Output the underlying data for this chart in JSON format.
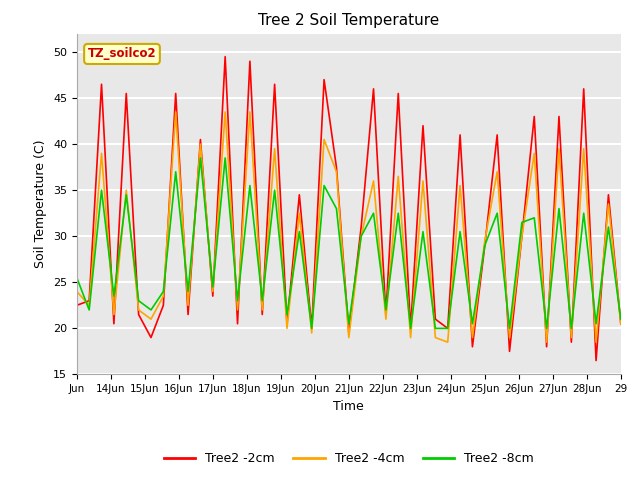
{
  "title": "Tree 2 Soil Temperature",
  "xlabel": "Time",
  "ylabel": "Soil Temperature (C)",
  "ylim": [
    15,
    52
  ],
  "yticks": [
    15,
    20,
    25,
    30,
    35,
    40,
    45,
    50
  ],
  "annotation_text": "TZ_soilco2",
  "background_color": "#e8e8e8",
  "line_colors": [
    "#ff0000",
    "#ffa500",
    "#00cc00"
  ],
  "line_labels": [
    "Tree2 -2cm",
    "Tree2 -4cm",
    "Tree2 -8cm"
  ],
  "xtick_labels": [
    "Jun",
    "14Jun",
    "15Jun",
    "16Jun",
    "17Jun",
    "18Jun",
    "19Jun",
    "20Jun",
    "21Jun",
    "22Jun",
    "23Jun",
    "24Jun",
    "25Jun",
    "26Jun",
    "27Jun",
    "28Jun",
    "29"
  ],
  "tree2_2cm": [
    22.5,
    23.0,
    46.5,
    20.5,
    45.5,
    21.5,
    19.0,
    22.5,
    45.5,
    21.5,
    40.5,
    23.5,
    49.5,
    20.5,
    49.0,
    21.5,
    46.5,
    20.5,
    34.5,
    20.0,
    47.0,
    37.5,
    19.5,
    31.0,
    46.0,
    21.5,
    45.5,
    20.0,
    42.0,
    21.0,
    20.0,
    41.0,
    18.0,
    29.0,
    41.0,
    17.5,
    30.0,
    43.0,
    18.0,
    43.0,
    18.5,
    46.0,
    16.5,
    34.5,
    20.5
  ],
  "tree2_4cm": [
    24.0,
    22.5,
    39.0,
    21.5,
    35.0,
    22.0,
    21.0,
    23.5,
    43.5,
    22.5,
    40.0,
    24.0,
    43.5,
    22.0,
    43.5,
    22.0,
    39.5,
    20.0,
    32.5,
    19.5,
    40.5,
    37.0,
    19.0,
    30.0,
    36.0,
    21.0,
    36.5,
    19.0,
    36.0,
    19.0,
    18.5,
    35.5,
    19.0,
    29.5,
    37.0,
    19.0,
    30.0,
    39.0,
    18.5,
    39.5,
    19.0,
    39.5,
    18.5,
    33.5,
    20.5
  ],
  "tree2_8cm": [
    25.5,
    22.0,
    35.0,
    23.5,
    34.5,
    23.0,
    22.0,
    24.0,
    37.0,
    24.0,
    38.5,
    24.5,
    38.5,
    23.0,
    35.5,
    23.0,
    35.0,
    21.5,
    30.5,
    20.0,
    35.5,
    33.0,
    20.5,
    30.0,
    32.5,
    22.0,
    32.5,
    20.0,
    30.5,
    20.0,
    20.0,
    30.5,
    20.5,
    29.0,
    32.5,
    20.0,
    31.5,
    32.0,
    20.0,
    33.0,
    20.0,
    32.5,
    20.5,
    31.0,
    21.0
  ]
}
